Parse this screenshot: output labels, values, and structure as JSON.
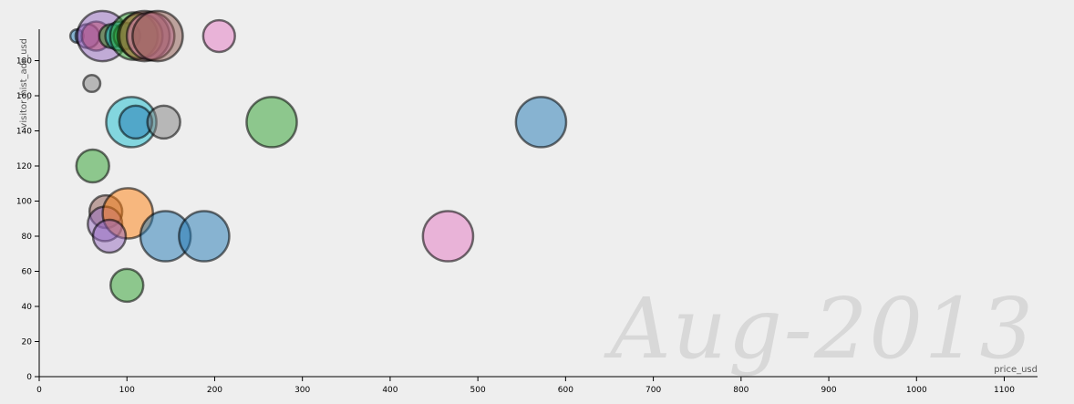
{
  "chart_data": {
    "type": "scatter",
    "xlabel": "price_usd",
    "ylabel": "visitor_hist_adr_usd",
    "xlim": [
      0,
      1140
    ],
    "ylim": [
      0,
      200
    ],
    "x_ticks": [
      0,
      100,
      200,
      300,
      400,
      500,
      600,
      700,
      800,
      900,
      1000,
      1100
    ],
    "y_ticks": [
      0,
      20,
      40,
      60,
      80,
      100,
      120,
      140,
      160,
      180
    ],
    "grid": false,
    "watermark": "Aug-2013",
    "points": [
      {
        "x": 43,
        "y": 194,
        "size": 0.25,
        "color": "#1f77b4"
      },
      {
        "x": 55,
        "y": 194,
        "size": 0.45,
        "color": "#9467bd"
      },
      {
        "x": 65,
        "y": 194,
        "size": 0.55,
        "color": "#d62728"
      },
      {
        "x": 72,
        "y": 194,
        "size": 0.95,
        "color": "#9467bd"
      },
      {
        "x": 82,
        "y": 194,
        "size": 0.45,
        "color": "#2ca02c"
      },
      {
        "x": 92,
        "y": 194,
        "size": 0.55,
        "color": "#17becf"
      },
      {
        "x": 100,
        "y": 194,
        "size": 0.5,
        "color": "#2ca02c"
      },
      {
        "x": 108,
        "y": 194,
        "size": 0.9,
        "color": "#2ca02c"
      },
      {
        "x": 115,
        "y": 194,
        "size": 0.85,
        "color": "#bcbd22"
      },
      {
        "x": 120,
        "y": 194,
        "size": 0.95,
        "color": "#8c564b"
      },
      {
        "x": 127,
        "y": 194,
        "size": 0.9,
        "color": "#e377c2"
      },
      {
        "x": 135,
        "y": 194,
        "size": 0.95,
        "color": "#8c564b"
      },
      {
        "x": 205,
        "y": 194,
        "size": 0.6,
        "color": "#e377c2"
      },
      {
        "x": 60,
        "y": 167,
        "size": 0.32,
        "color": "#7f7f7f"
      },
      {
        "x": 105,
        "y": 145,
        "size": 0.95,
        "color": "#17becf"
      },
      {
        "x": 110,
        "y": 145,
        "size": 0.62,
        "color": "#1f77b4"
      },
      {
        "x": 142,
        "y": 145,
        "size": 0.62,
        "color": "#7f7f7f"
      },
      {
        "x": 265,
        "y": 145,
        "size": 0.95,
        "color": "#2ca02c"
      },
      {
        "x": 572,
        "y": 145,
        "size": 0.95,
        "color": "#1f77b4"
      },
      {
        "x": 61,
        "y": 120,
        "size": 0.62,
        "color": "#2ca02c"
      },
      {
        "x": 76,
        "y": 94,
        "size": 0.62,
        "color": "#8c564b"
      },
      {
        "x": 75,
        "y": 87,
        "size": 0.65,
        "color": "#9467bd"
      },
      {
        "x": 101,
        "y": 93,
        "size": 0.95,
        "color": "#ff7f0e"
      },
      {
        "x": 80,
        "y": 80,
        "size": 0.62,
        "color": "#9467bd"
      },
      {
        "x": 144,
        "y": 80,
        "size": 0.95,
        "color": "#1f77b4"
      },
      {
        "x": 188,
        "y": 80,
        "size": 0.95,
        "color": "#1f77b4"
      },
      {
        "x": 466,
        "y": 80,
        "size": 0.95,
        "color": "#e377c2"
      },
      {
        "x": 100,
        "y": 52,
        "size": 0.62,
        "color": "#2ca02c"
      }
    ]
  }
}
